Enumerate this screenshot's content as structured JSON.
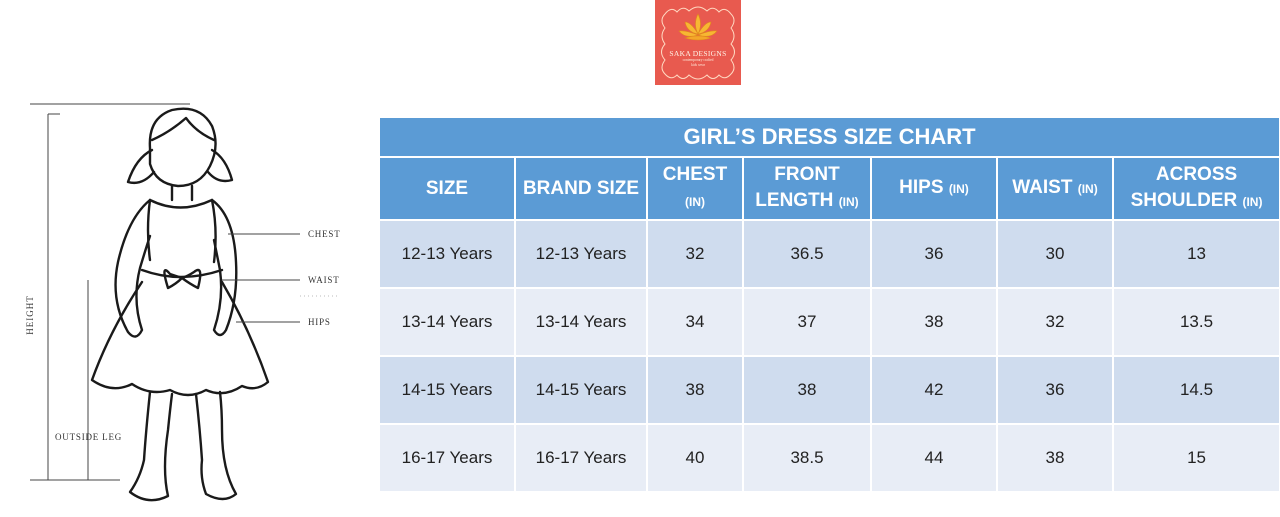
{
  "logo": {
    "brand": "SAKA DESIGNS",
    "tagline_1": "contemporary crafted",
    "tagline_2": "kids wear",
    "bg_color": "#e85a4f"
  },
  "figure": {
    "labels": {
      "chest": "CHEST",
      "waist": "WAIST",
      "hips": "HIPS",
      "height": "HEIGHT",
      "outside_leg": "OUTSIDE LEG"
    }
  },
  "table": {
    "title": "GIRL’S DRESS SIZE CHART",
    "header_color": "#5b9bd5",
    "columns": [
      {
        "label": "SIZE",
        "unit": ""
      },
      {
        "label": "BRAND SIZE",
        "unit": ""
      },
      {
        "label": "CHEST",
        "unit": "(IN)"
      },
      {
        "label": "FRONT LENGTH",
        "unit": "(IN)"
      },
      {
        "label": "HIPS",
        "unit": "(IN)"
      },
      {
        "label": "WAIST",
        "unit": "(IN)"
      },
      {
        "label": "ACROSS SHOULDER",
        "unit": "(IN)"
      }
    ],
    "rows": [
      [
        "12-13 Years",
        "12-13 Years",
        "32",
        "36.5",
        "36",
        "30",
        "13"
      ],
      [
        "13-14 Years",
        "13-14 Years",
        "34",
        "37",
        "38",
        "32",
        "13.5"
      ],
      [
        "14-15 Years",
        "14-15 Years",
        "38",
        "38",
        "42",
        "36",
        "14.5"
      ],
      [
        "16-17 Years",
        "16-17 Years",
        "40",
        "38.5",
        "44",
        "38",
        "15"
      ]
    ]
  }
}
